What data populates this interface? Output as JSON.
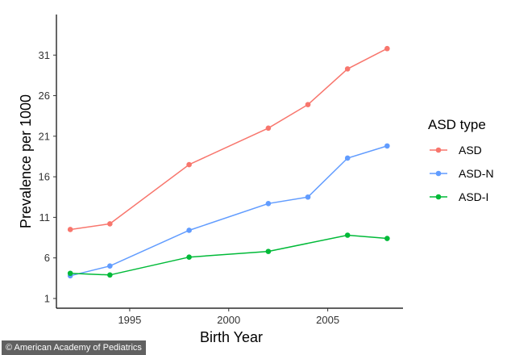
{
  "chart_data": {
    "type": "line",
    "xlabel": "Birth Year",
    "ylabel": "Prevalence per 1000",
    "x_ticks": [
      1995,
      2000,
      2005
    ],
    "y_ticks": [
      1,
      6,
      11,
      16,
      21,
      26,
      31
    ],
    "xlim": [
      1991.3,
      2008.8
    ],
    "ylim": [
      -0.2,
      36
    ],
    "grid": false,
    "legend": {
      "title": "ASD type",
      "position": "right"
    },
    "series": [
      {
        "name": "ASD",
        "color": "#F8766D",
        "x": [
          1992,
          1994,
          1998,
          2002,
          2004,
          2006,
          2008
        ],
        "y": [
          9.5,
          10.2,
          17.5,
          22.0,
          24.9,
          29.3,
          31.8
        ]
      },
      {
        "name": "ASD-N",
        "color": "#619CFF",
        "x": [
          1992,
          1994,
          1998,
          2002,
          2004,
          2006,
          2008
        ],
        "y": [
          3.8,
          5.0,
          9.4,
          12.7,
          13.5,
          18.3,
          19.8
        ]
      },
      {
        "name": "ASD-I",
        "color": "#00BA38",
        "x": [
          1992,
          1994,
          1998,
          2002,
          2006,
          2008
        ],
        "y": [
          4.1,
          3.9,
          6.1,
          6.8,
          8.8,
          8.4
        ]
      }
    ]
  },
  "credit": "© American Academy of Pediatrics"
}
